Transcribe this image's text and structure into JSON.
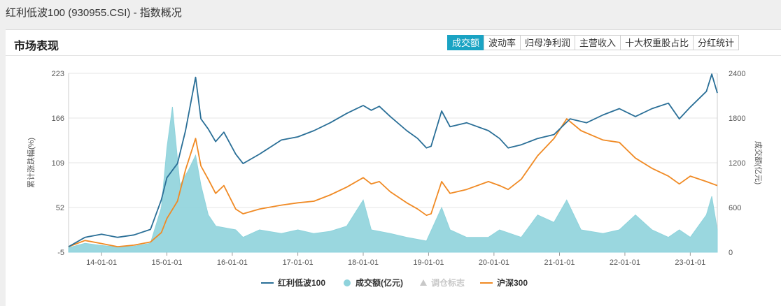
{
  "page": {
    "title": "红利低波100 (930955.CSI) - 指数概况"
  },
  "panel": {
    "title": "市场表现",
    "tabs": [
      {
        "label": "成交额",
        "active": true
      },
      {
        "label": "波动率",
        "active": false
      },
      {
        "label": "归母净利润",
        "active": false
      },
      {
        "label": "主营收入",
        "active": false
      },
      {
        "label": "十大权重股占比",
        "active": false
      },
      {
        "label": "分红统计",
        "active": false
      }
    ]
  },
  "colors": {
    "index_line": "#2a6f97",
    "volume_area": "#8fd3dc",
    "hs300_line": "#f08a24",
    "marker": "#c8c8c8",
    "active_tab": "#1aa3c3"
  },
  "chart_data": {
    "type": "line",
    "left_axis": {
      "label": "累计涨跌幅(%)",
      "ticks": [
        "223",
        "166",
        "109",
        "52",
        "-5"
      ],
      "range": [
        -5,
        223
      ]
    },
    "right_axis": {
      "label": "成交额(亿元)",
      "ticks": [
        "2400",
        "1800",
        "1200",
        "600",
        "0"
      ],
      "range": [
        0,
        2400
      ]
    },
    "x_ticks": [
      "14-01-01",
      "15-01-01",
      "16-01-01",
      "17-01-01",
      "18-01-01",
      "19-01-01",
      "20-01-01",
      "21-01-01",
      "22-01-01",
      "23-01-01"
    ],
    "x_range": [
      "2013-07-01",
      "2023-06-01"
    ],
    "grid": true,
    "legend": {
      "placement": "bottom",
      "items": [
        {
          "name": "红利低波100",
          "symbol": "line"
        },
        {
          "name": "成交额(亿元)",
          "symbol": "circle"
        },
        {
          "name": "调仓标志",
          "symbol": "triangle",
          "muted": true
        },
        {
          "name": "沪深300",
          "symbol": "line"
        }
      ]
    },
    "series": [
      {
        "name": "红利低波100",
        "axis": "left",
        "points": [
          [
            "2013-07-01",
            2
          ],
          [
            "2013-10-01",
            14
          ],
          [
            "2014-01-01",
            18
          ],
          [
            "2014-04-01",
            14
          ],
          [
            "2014-07-01",
            17
          ],
          [
            "2014-10-01",
            24
          ],
          [
            "2014-12-01",
            62
          ],
          [
            "2015-01-01",
            90
          ],
          [
            "2015-03-01",
            108
          ],
          [
            "2015-04-15",
            150
          ],
          [
            "2015-06-10",
            218
          ],
          [
            "2015-07-10",
            165
          ],
          [
            "2015-08-20",
            152
          ],
          [
            "2015-09-30",
            136
          ],
          [
            "2015-11-15",
            148
          ],
          [
            "2016-01-20",
            120
          ],
          [
            "2016-03-01",
            108
          ],
          [
            "2016-06-01",
            120
          ],
          [
            "2016-10-01",
            138
          ],
          [
            "2017-01-01",
            142
          ],
          [
            "2017-04-01",
            150
          ],
          [
            "2017-07-01",
            160
          ],
          [
            "2017-10-01",
            172
          ],
          [
            "2018-01-01",
            182
          ],
          [
            "2018-02-15",
            176
          ],
          [
            "2018-04-01",
            181
          ],
          [
            "2018-06-01",
            168
          ],
          [
            "2018-09-01",
            150
          ],
          [
            "2018-11-01",
            140
          ],
          [
            "2018-12-20",
            128
          ],
          [
            "2019-01-15",
            130
          ],
          [
            "2019-03-15",
            175
          ],
          [
            "2019-05-01",
            155
          ],
          [
            "2019-08-01",
            160
          ],
          [
            "2019-12-01",
            150
          ],
          [
            "2020-02-01",
            140
          ],
          [
            "2020-03-20",
            128
          ],
          [
            "2020-06-01",
            132
          ],
          [
            "2020-09-01",
            140
          ],
          [
            "2020-12-01",
            145
          ],
          [
            "2021-03-01",
            165
          ],
          [
            "2021-06-01",
            160
          ],
          [
            "2021-09-01",
            170
          ],
          [
            "2021-12-01",
            178
          ],
          [
            "2022-03-01",
            168
          ],
          [
            "2022-06-01",
            178
          ],
          [
            "2022-09-01",
            185
          ],
          [
            "2022-11-01",
            165
          ],
          [
            "2023-01-01",
            180
          ],
          [
            "2023-04-01",
            200
          ],
          [
            "2023-05-01",
            222
          ],
          [
            "2023-06-01",
            198
          ]
        ]
      },
      {
        "name": "沪深300",
        "axis": "left",
        "points": [
          [
            "2013-07-01",
            2
          ],
          [
            "2013-10-01",
            10
          ],
          [
            "2014-01-01",
            6
          ],
          [
            "2014-04-01",
            2
          ],
          [
            "2014-07-01",
            4
          ],
          [
            "2014-10-01",
            8
          ],
          [
            "2014-12-01",
            20
          ],
          [
            "2015-01-01",
            38
          ],
          [
            "2015-03-01",
            60
          ],
          [
            "2015-04-15",
            100
          ],
          [
            "2015-06-10",
            140
          ],
          [
            "2015-07-10",
            105
          ],
          [
            "2015-08-20",
            88
          ],
          [
            "2015-09-30",
            70
          ],
          [
            "2015-11-15",
            80
          ],
          [
            "2016-01-20",
            50
          ],
          [
            "2016-03-01",
            44
          ],
          [
            "2016-06-01",
            50
          ],
          [
            "2016-10-01",
            55
          ],
          [
            "2017-01-01",
            58
          ],
          [
            "2017-04-01",
            60
          ],
          [
            "2017-07-01",
            68
          ],
          [
            "2017-10-01",
            78
          ],
          [
            "2018-01-01",
            90
          ],
          [
            "2018-02-15",
            82
          ],
          [
            "2018-04-01",
            85
          ],
          [
            "2018-06-01",
            72
          ],
          [
            "2018-09-01",
            58
          ],
          [
            "2018-11-01",
            50
          ],
          [
            "2018-12-20",
            42
          ],
          [
            "2019-01-15",
            44
          ],
          [
            "2019-03-15",
            85
          ],
          [
            "2019-05-01",
            70
          ],
          [
            "2019-08-01",
            75
          ],
          [
            "2019-12-01",
            85
          ],
          [
            "2020-02-01",
            80
          ],
          [
            "2020-03-20",
            75
          ],
          [
            "2020-06-01",
            88
          ],
          [
            "2020-09-01",
            118
          ],
          [
            "2020-12-01",
            140
          ],
          [
            "2021-02-10",
            165
          ],
          [
            "2021-05-01",
            150
          ],
          [
            "2021-09-01",
            138
          ],
          [
            "2021-12-01",
            135
          ],
          [
            "2022-03-01",
            115
          ],
          [
            "2022-06-01",
            102
          ],
          [
            "2022-09-01",
            92
          ],
          [
            "2022-11-01",
            82
          ],
          [
            "2023-01-01",
            92
          ],
          [
            "2023-04-01",
            85
          ],
          [
            "2023-06-01",
            80
          ]
        ]
      },
      {
        "name": "成交额(亿元)",
        "axis": "right",
        "points": [
          [
            "2013-07-01",
            60
          ],
          [
            "2013-10-01",
            120
          ],
          [
            "2014-01-01",
            90
          ],
          [
            "2014-04-01",
            70
          ],
          [
            "2014-07-01",
            80
          ],
          [
            "2014-10-01",
            120
          ],
          [
            "2014-12-01",
            600
          ],
          [
            "2015-01-01",
            1400
          ],
          [
            "2015-02-01",
            1950
          ],
          [
            "2015-03-15",
            900
          ],
          [
            "2015-05-01",
            1100
          ],
          [
            "2015-06-10",
            1300
          ],
          [
            "2015-07-10",
            900
          ],
          [
            "2015-08-20",
            500
          ],
          [
            "2015-10-01",
            350
          ],
          [
            "2016-01-20",
            300
          ],
          [
            "2016-03-01",
            200
          ],
          [
            "2016-06-01",
            300
          ],
          [
            "2016-10-01",
            250
          ],
          [
            "2017-01-01",
            300
          ],
          [
            "2017-04-01",
            250
          ],
          [
            "2017-07-01",
            280
          ],
          [
            "2017-10-01",
            350
          ],
          [
            "2018-01-01",
            700
          ],
          [
            "2018-02-15",
            300
          ],
          [
            "2018-06-01",
            250
          ],
          [
            "2018-09-01",
            200
          ],
          [
            "2018-12-20",
            150
          ],
          [
            "2019-03-15",
            600
          ],
          [
            "2019-05-01",
            300
          ],
          [
            "2019-08-01",
            200
          ],
          [
            "2019-12-01",
            200
          ],
          [
            "2020-02-01",
            300
          ],
          [
            "2020-06-01",
            200
          ],
          [
            "2020-09-01",
            500
          ],
          [
            "2020-12-01",
            400
          ],
          [
            "2021-02-10",
            700
          ],
          [
            "2021-05-01",
            300
          ],
          [
            "2021-09-01",
            250
          ],
          [
            "2021-12-01",
            300
          ],
          [
            "2022-03-01",
            500
          ],
          [
            "2022-06-01",
            300
          ],
          [
            "2022-09-01",
            200
          ],
          [
            "2022-11-01",
            300
          ],
          [
            "2023-01-01",
            200
          ],
          [
            "2023-04-01",
            500
          ],
          [
            "2023-05-01",
            750
          ],
          [
            "2023-06-01",
            300
          ]
        ]
      }
    ]
  }
}
